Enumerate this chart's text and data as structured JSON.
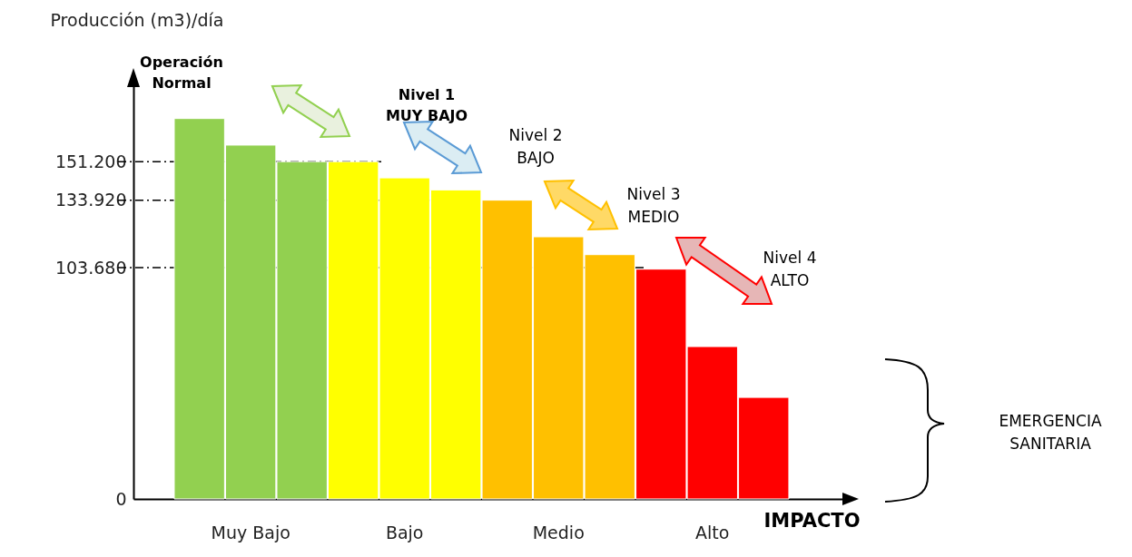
{
  "chart_data": {
    "type": "bar",
    "ylabel": "Producción (m3)/día",
    "xlabel": "IMPACTO",
    "categories": [
      null,
      "Muy Bajo",
      null,
      null,
      "Bajo",
      null,
      null,
      "Medio",
      null,
      null,
      "Alto",
      null
    ],
    "values": [
      170500,
      158600,
      151200,
      151200,
      143900,
      138500,
      133920,
      117500,
      109500,
      103000,
      68300,
      45500
    ],
    "colors": [
      "#92d050",
      "#92d050",
      "#92d050",
      "#ffff00",
      "#ffff00",
      "#ffff00",
      "#ffc000",
      "#ffc000",
      "#ffc000",
      "#ff0000",
      "#ff0000",
      "#ff0000"
    ],
    "ylim": [
      0,
      185000
    ],
    "yticks": [
      0,
      {
        "value": 103680,
        "label": "103.680"
      },
      {
        "value": 133920,
        "label": "133.920"
      },
      {
        "value": 151200,
        "label": "151.200"
      }
    ],
    "ref_lines": [
      {
        "axis": "y",
        "value": 151200,
        "color": "#000000",
        "line_style": "dashed"
      },
      {
        "axis": "y",
        "value": 133920,
        "color": "#000000",
        "line_style": "dashed"
      },
      {
        "axis": "y",
        "value": 103680,
        "color": "#000000",
        "line_style": "dashed"
      }
    ],
    "annotations": [
      "Operación\nNormal",
      "Nivel 1\nMUY BAJO",
      "Nivel 2\nBAJO",
      "Nivel 3\nMEDIO",
      "Nivel 4\nALTO",
      "EMERGENCIA\nSANITARIA"
    ],
    "grid": false,
    "legend": false
  }
}
